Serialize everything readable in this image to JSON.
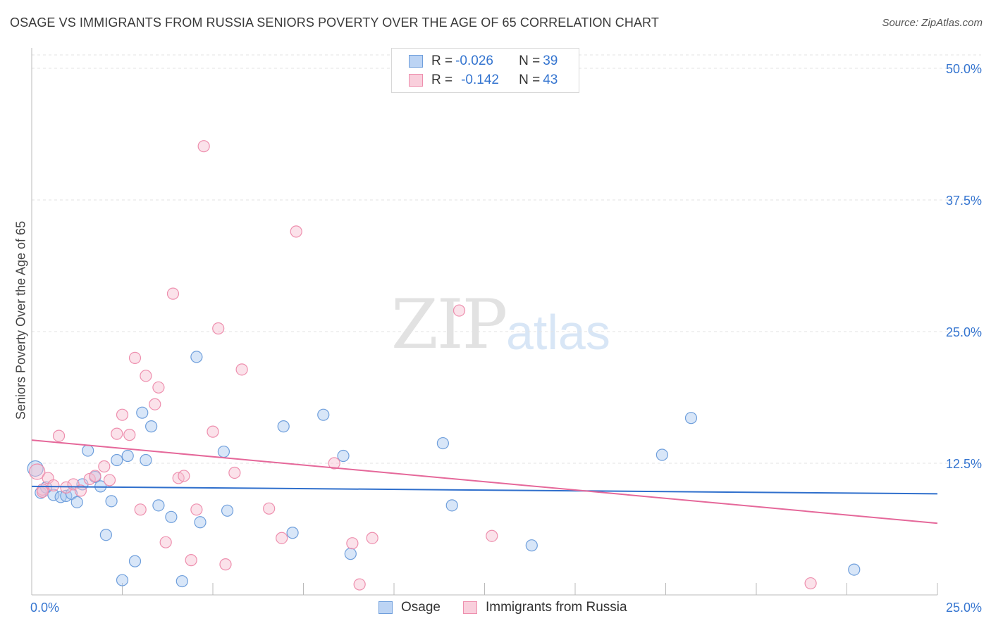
{
  "title": "OSAGE VS IMMIGRANTS FROM RUSSIA SENIORS POVERTY OVER THE AGE OF 65 CORRELATION CHART",
  "source": "Source: ZipAtlas.com",
  "watermark": {
    "zip": "ZIP",
    "atlas": "atlas"
  },
  "legend_top": {
    "row1": {
      "r_label": "R = ",
      "r_value": "-0.026",
      "n_label": "N = ",
      "n_value": "39"
    },
    "row2": {
      "r_label": "R = ",
      "r_value": "-0.142",
      "n_label": "N = ",
      "n_value": "43"
    }
  },
  "colors": {
    "osage_fill": "#a9c8f0",
    "osage_stroke": "#6f9fdc",
    "osage_line": "#2f6fcc",
    "russia_fill": "#f7bfd0",
    "russia_stroke": "#ee8fae",
    "russia_line": "#e5689a",
    "tick_label": "#3575d0",
    "grid": "#e3e3e3"
  },
  "chart_data": {
    "type": "scatter",
    "title": "OSAGE VS IMMIGRANTS FROM RUSSIA SENIORS POVERTY OVER THE AGE OF 65 CORRELATION CHART",
    "xlabel": "",
    "ylabel": "Seniors Poverty Over the Age of 65",
    "xlim": [
      0,
      25
    ],
    "ylim": [
      0,
      50
    ],
    "x_tick_labels": {
      "left": "0.0%",
      "right": "25.0%"
    },
    "y_ticks": [
      {
        "value": 12.5,
        "label": "12.5%"
      },
      {
        "value": 25.0,
        "label": "25.0%"
      },
      {
        "value": 37.5,
        "label": "37.5%"
      },
      {
        "value": 50.0,
        "label": "50.0%"
      }
    ],
    "series": [
      {
        "name": "Osage",
        "r": -0.026,
        "n": 39,
        "trend": {
          "x": [
            0,
            25
          ],
          "y": [
            10.3,
            9.6
          ]
        },
        "points": [
          {
            "x": 0.1,
            "y": 12.0
          },
          {
            "x": 0.25,
            "y": 9.7
          },
          {
            "x": 0.4,
            "y": 10.2
          },
          {
            "x": 0.6,
            "y": 9.5
          },
          {
            "x": 0.8,
            "y": 9.3
          },
          {
            "x": 0.95,
            "y": 9.4
          },
          {
            "x": 1.1,
            "y": 9.6
          },
          {
            "x": 1.25,
            "y": 8.8
          },
          {
            "x": 1.4,
            "y": 10.5
          },
          {
            "x": 1.55,
            "y": 13.7
          },
          {
            "x": 1.75,
            "y": 11.2
          },
          {
            "x": 1.9,
            "y": 10.3
          },
          {
            "x": 2.05,
            "y": 5.7
          },
          {
            "x": 2.2,
            "y": 8.9
          },
          {
            "x": 2.35,
            "y": 12.8
          },
          {
            "x": 2.5,
            "y": 1.4
          },
          {
            "x": 2.65,
            "y": 13.2
          },
          {
            "x": 2.85,
            "y": 3.2
          },
          {
            "x": 3.05,
            "y": 17.3
          },
          {
            "x": 3.15,
            "y": 12.8
          },
          {
            "x": 3.3,
            "y": 16.0
          },
          {
            "x": 3.5,
            "y": 8.5
          },
          {
            "x": 3.85,
            "y": 7.4
          },
          {
            "x": 4.15,
            "y": 1.3
          },
          {
            "x": 4.55,
            "y": 22.6
          },
          {
            "x": 4.65,
            "y": 6.9
          },
          {
            "x": 5.3,
            "y": 13.6
          },
          {
            "x": 5.4,
            "y": 8.0
          },
          {
            "x": 6.95,
            "y": 16.0
          },
          {
            "x": 7.2,
            "y": 5.9
          },
          {
            "x": 8.05,
            "y": 17.1
          },
          {
            "x": 8.6,
            "y": 13.2
          },
          {
            "x": 8.8,
            "y": 3.9
          },
          {
            "x": 11.35,
            "y": 14.4
          },
          {
            "x": 11.6,
            "y": 8.5
          },
          {
            "x": 13.8,
            "y": 4.7
          },
          {
            "x": 17.4,
            "y": 13.3
          },
          {
            "x": 18.2,
            "y": 16.8
          },
          {
            "x": 22.7,
            "y": 2.4
          }
        ]
      },
      {
        "name": "Immigrants from Russia",
        "r": -0.142,
        "n": 43,
        "trend": {
          "x": [
            0,
            25
          ],
          "y": [
            14.7,
            6.8
          ]
        },
        "points": [
          {
            "x": 0.15,
            "y": 11.7
          },
          {
            "x": 0.3,
            "y": 10.0
          },
          {
            "x": 0.45,
            "y": 11.1
          },
          {
            "x": 0.6,
            "y": 10.4
          },
          {
            "x": 0.75,
            "y": 15.1
          },
          {
            "x": 0.95,
            "y": 10.2
          },
          {
            "x": 1.15,
            "y": 10.5
          },
          {
            "x": 1.35,
            "y": 9.9
          },
          {
            "x": 1.6,
            "y": 11.0
          },
          {
            "x": 1.75,
            "y": 11.3
          },
          {
            "x": 2.0,
            "y": 12.2
          },
          {
            "x": 2.15,
            "y": 10.9
          },
          {
            "x": 2.35,
            "y": 15.3
          },
          {
            "x": 2.5,
            "y": 17.1
          },
          {
            "x": 2.7,
            "y": 15.2
          },
          {
            "x": 2.85,
            "y": 22.5
          },
          {
            "x": 3.0,
            "y": 8.1
          },
          {
            "x": 3.15,
            "y": 20.8
          },
          {
            "x": 3.4,
            "y": 18.1
          },
          {
            "x": 3.5,
            "y": 19.7
          },
          {
            "x": 3.7,
            "y": 5.0
          },
          {
            "x": 3.9,
            "y": 28.6
          },
          {
            "x": 4.05,
            "y": 11.1
          },
          {
            "x": 4.2,
            "y": 11.3
          },
          {
            "x": 4.4,
            "y": 3.3
          },
          {
            "x": 4.55,
            "y": 8.1
          },
          {
            "x": 4.75,
            "y": 42.6
          },
          {
            "x": 5.0,
            "y": 15.5
          },
          {
            "x": 5.15,
            "y": 25.3
          },
          {
            "x": 5.35,
            "y": 2.9
          },
          {
            "x": 5.6,
            "y": 11.6
          },
          {
            "x": 5.8,
            "y": 21.4
          },
          {
            "x": 6.55,
            "y": 8.2
          },
          {
            "x": 6.9,
            "y": 5.4
          },
          {
            "x": 7.3,
            "y": 34.5
          },
          {
            "x": 8.35,
            "y": 12.5
          },
          {
            "x": 8.85,
            "y": 4.9
          },
          {
            "x": 9.05,
            "y": 1.0
          },
          {
            "x": 9.4,
            "y": 5.4
          },
          {
            "x": 11.8,
            "y": 27.0
          },
          {
            "x": 12.7,
            "y": 5.6
          },
          {
            "x": 21.5,
            "y": 1.1
          },
          {
            "x": 0.3,
            "y": 9.8
          }
        ]
      }
    ]
  }
}
